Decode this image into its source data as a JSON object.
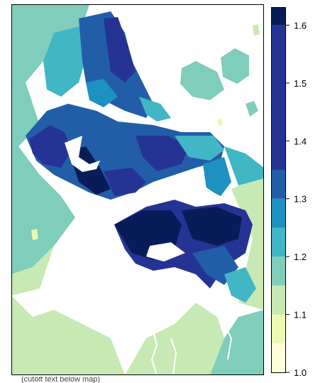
{
  "legend": {
    "breaks": [
      1.0,
      1.05,
      1.1,
      1.15,
      1.2,
      1.25,
      1.3,
      1.35,
      1.6
    ],
    "colors": [
      "#ffffd9",
      "#edf8b1",
      "#c7e9b4",
      "#7fcdbb",
      "#41b6c4",
      "#1d91c0",
      "#225ea8",
      "#253494",
      "#081d58"
    ],
    "ticks": [
      {
        "value": 1.0,
        "label": "1.0"
      },
      {
        "value": 1.1,
        "label": "1.1"
      },
      {
        "value": 1.2,
        "label": "1.2"
      },
      {
        "value": 1.3,
        "label": "1.3"
      },
      {
        "value": 1.4,
        "label": "1.4"
      },
      {
        "value": 1.5,
        "label": "1.5"
      },
      {
        "value": 1.6,
        "label": "1.6"
      }
    ]
  },
  "caption": "(cutoff text below map)"
}
